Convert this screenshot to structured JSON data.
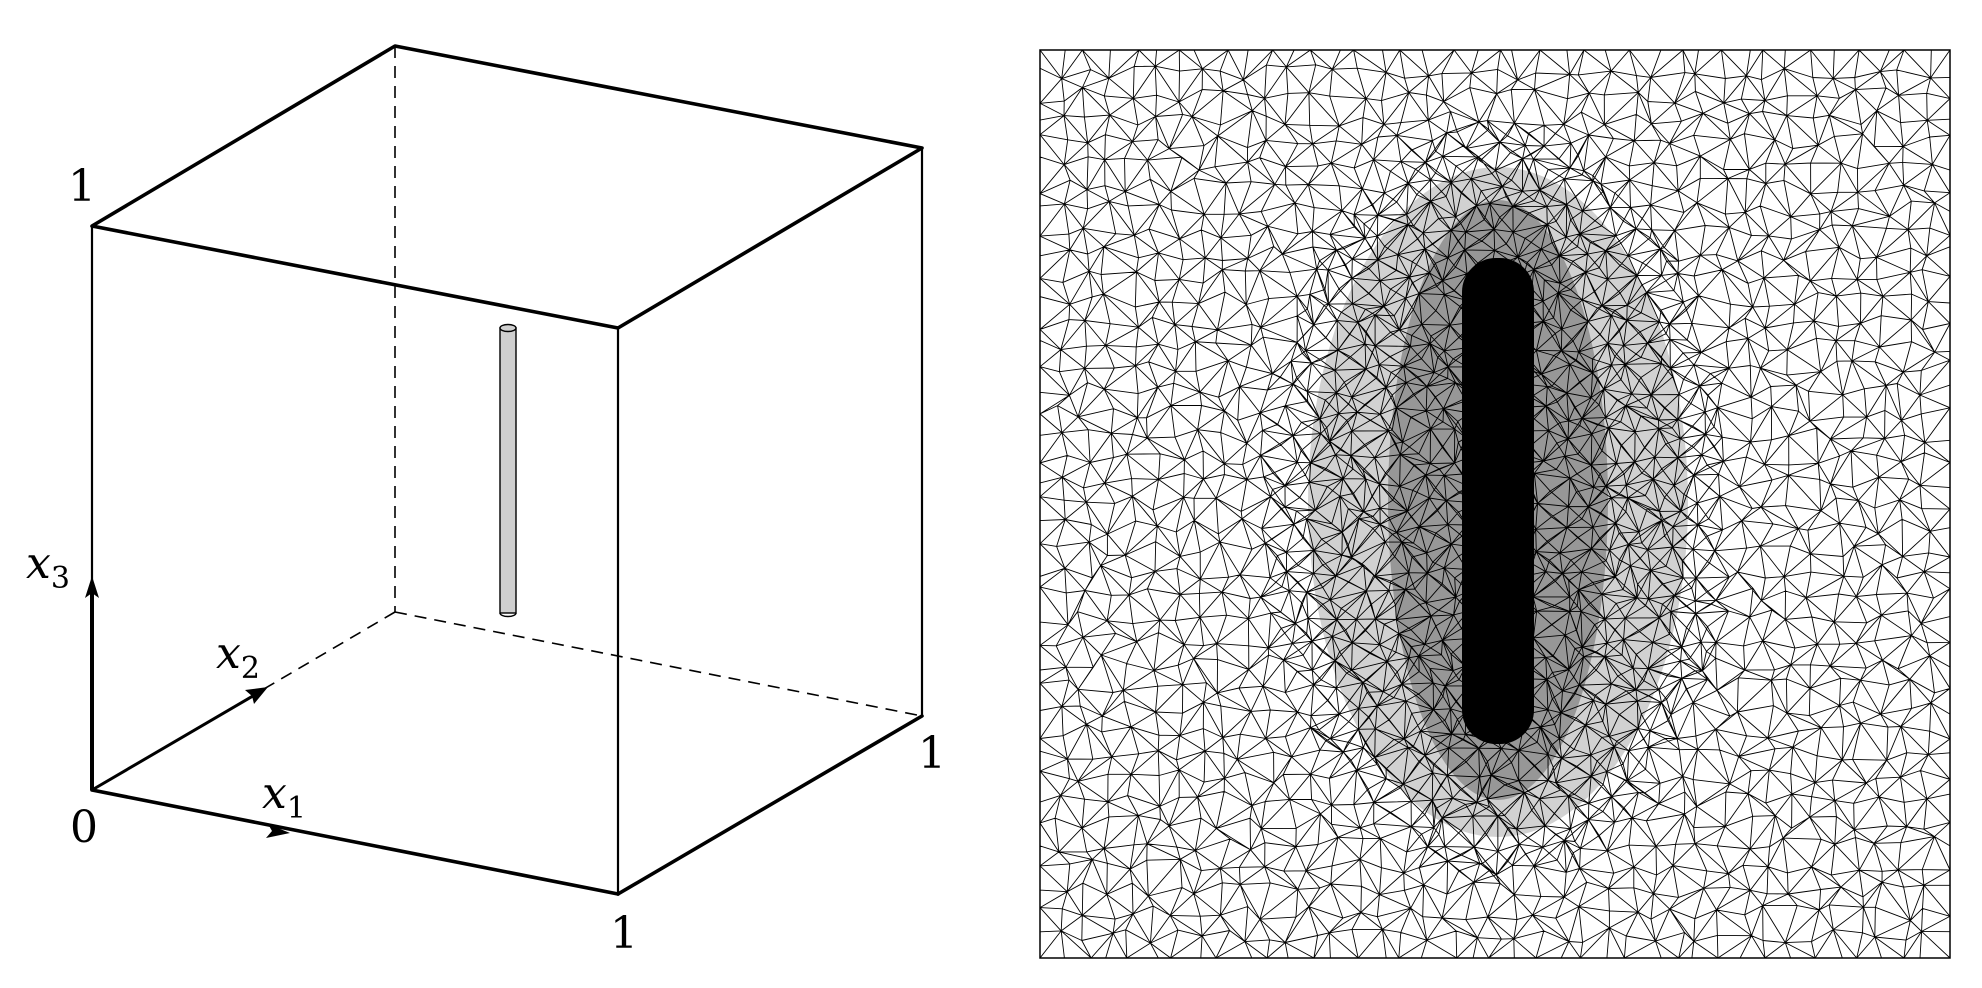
{
  "cube": {
    "tick_one_top": "1",
    "tick_zero": "0",
    "tick_one_front": "1",
    "tick_one_right": "1",
    "axis_x1_var": "x",
    "axis_x1_sub": "1",
    "axis_x2_var": "x",
    "axis_x2_sub": "2",
    "axis_x3_var": "x",
    "axis_x3_sub": "3",
    "inclusion_color": "#cfcfcf"
  },
  "mesh": {
    "line_color": "#000000",
    "dense_region": "vertical-strip-center"
  }
}
